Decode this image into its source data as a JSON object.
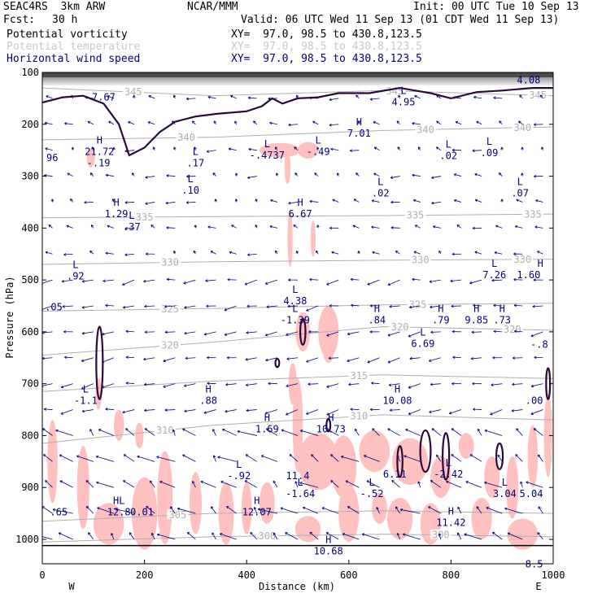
{
  "header": {
    "model": "SEAC4RS  3km ARW",
    "org": "NCAR/MMM",
    "init": "Init: 00 UTC Tue 10 Sep 13",
    "fcst_label": "Fcst:",
    "fcst_value": "30 h",
    "valid": "Valid: 06 UTC Wed 11 Sep 13 (01 CDT Wed 11 Sep 13)",
    "fields": [
      {
        "name": "Potential vorticity",
        "xy": "XY=  97.0, 98.5 to 430.8,123.5",
        "color": "#000000"
      },
      {
        "name": "Potential temperature",
        "xy": "XY=  97.0, 98.5 to 430.8,123.5",
        "color": "#c8c8c8"
      },
      {
        "name": "Horizontal wind speed",
        "xy": "XY=  97.0, 98.5 to 430.8,123.5",
        "color": "#000080"
      }
    ]
  },
  "chart_data": {
    "type": "cross-section",
    "xlabel": "Distance (km)",
    "ylabel": "Pressure (hPa)",
    "xlim": [
      0,
      1000
    ],
    "ylim": [
      1050,
      100
    ],
    "xticks": [
      0,
      200,
      400,
      600,
      800,
      1000
    ],
    "yticks": [
      100,
      200,
      300,
      400,
      500,
      600,
      700,
      800,
      900,
      1000
    ],
    "end_labels": {
      "left": "W",
      "right": "E"
    },
    "theta_contours": [
      {
        "label": "345",
        "pressure": [
          130,
          145,
          135,
          145
        ],
        "label_x": [
          178,
          690,
          970
        ]
      },
      {
        "label": "340",
        "pressure": [
          230,
          225,
          212,
          205
        ],
        "label_x": [
          282,
          750,
          940
        ]
      },
      {
        "label": "335",
        "pressure": [
          380,
          378,
          376,
          373
        ],
        "label_x": [
          200,
          730,
          960
        ]
      },
      {
        "label": "330",
        "pressure": [
          470,
          465,
          462,
          460
        ],
        "label_x": [
          250,
          740,
          940
        ]
      },
      {
        "label": "325",
        "pressure": [
          560,
          555,
          548,
          545
        ],
        "label_x": [
          250,
          735
        ]
      },
      {
        "label": "320",
        "pressure": [
          645,
          620,
          590,
          597
        ],
        "label_x": [
          250,
          700,
          920
        ]
      },
      {
        "label": "315",
        "pressure": [
          715,
          695,
          683,
          690
        ],
        "label_x": [
          620
        ]
      },
      {
        "label": "310",
        "pressure": [
          815,
          780,
          760,
          770
        ],
        "label_x": [
          240,
          620
        ]
      },
      {
        "label": "305",
        "pressure": [
          965,
          950,
          945,
          950
        ],
        "label_x": [
          265
        ]
      },
      {
        "label": "300",
        "pressure": [
          1005,
          995,
          990,
          995
        ],
        "label_x": [
          440,
          780
        ]
      }
    ],
    "extrema": [
      {
        "type": "",
        "value": "7.67",
        "x": 120,
        "p": 135
      },
      {
        "type": "L",
        "value": "4.95",
        "x": 707,
        "p": 145
      },
      {
        "type": "",
        "value": "4.08",
        "x": 975,
        "p": 102
      },
      {
        "type": "H",
        "value": "21.72",
        "x": 112,
        "p": 240
      },
      {
        "type": "",
        "value": "-.19",
        "x": 110,
        "p": 262
      },
      {
        "type": "",
        "value": "96",
        "x": 8,
        "p": 252
      },
      {
        "type": "L",
        "value": "-.4737",
        "x": 440,
        "p": 247
      },
      {
        "type": "L",
        "value": "-.49",
        "x": 540,
        "p": 240
      },
      {
        "type": "H",
        "value": "7.01",
        "x": 620,
        "p": 205
      },
      {
        "type": "L",
        "value": ".02",
        "x": 795,
        "p": 248
      },
      {
        "type": "L",
        "value": ".09",
        "x": 875,
        "p": 243
      },
      {
        "type": "L",
        "value": ".17",
        "x": 300,
        "p": 262
      },
      {
        "type": "L",
        "value": ".10",
        "x": 290,
        "p": 315
      },
      {
        "type": "L",
        "value": ".02",
        "x": 662,
        "p": 320
      },
      {
        "type": "L",
        "value": ".07",
        "x": 935,
        "p": 320
      },
      {
        "type": "H",
        "value": "1.29",
        "x": 145,
        "p": 360
      },
      {
        "type": "L",
        "value": ".37",
        "x": 175,
        "p": 385
      },
      {
        "type": "H",
        "value": "6.67",
        "x": 505,
        "p": 360
      },
      {
        "type": "L",
        "value": ".92",
        "x": 65,
        "p": 480
      },
      {
        "type": "",
        "value": ".05",
        "x": 5,
        "p": 540
      },
      {
        "type": "L",
        "value": "4.38",
        "x": 495,
        "p": 528
      },
      {
        "type": "L",
        "value": "-1.39",
        "x": 495,
        "p": 565
      },
      {
        "type": "H",
        "value": ".84",
        "x": 655,
        "p": 565
      },
      {
        "type": "H",
        "value": ".79",
        "x": 780,
        "p": 565
      },
      {
        "type": "H",
        "value": "9.85",
        "x": 850,
        "p": 565
      },
      {
        "type": "H",
        "value": ".73",
        "x": 900,
        "p": 565
      },
      {
        "type": "L",
        "value": "7.26",
        "x": 885,
        "p": 478
      },
      {
        "type": "H",
        "value": "1.60",
        "x": 975,
        "p": 478
      },
      {
        "type": "L",
        "value": "6.69",
        "x": 745,
        "p": 610
      },
      {
        "type": "",
        "value": "-.8",
        "x": 990,
        "p": 612
      },
      {
        "type": "L",
        "value": "-1.1",
        "x": 85,
        "p": 720
      },
      {
        "type": "H",
        "value": ".88",
        "x": 325,
        "p": 720
      },
      {
        "type": "H",
        "value": "10.08",
        "x": 695,
        "p": 720
      },
      {
        "type": "",
        "value": ".00",
        "x": 980,
        "p": 720
      },
      {
        "type": "H",
        "value": "1.69",
        "x": 440,
        "p": 775
      },
      {
        "type": "H",
        "value": "10.73",
        "x": 565,
        "p": 775
      },
      {
        "type": "L",
        "value": "-.92",
        "x": 385,
        "p": 865
      },
      {
        "type": "",
        "value": "11.4",
        "x": 500,
        "p": 865
      },
      {
        "type": "",
        "value": "6.11",
        "x": 690,
        "p": 862
      },
      {
        "type": "L",
        "value": "-2.42",
        "x": 795,
        "p": 862
      },
      {
        "type": "L",
        "value": "-1.64",
        "x": 505,
        "p": 900
      },
      {
        "type": "L",
        "value": "-.52",
        "x": 645,
        "p": 900
      },
      {
        "type": "L",
        "value": "3.04",
        "x": 905,
        "p": 900
      },
      {
        "type": "",
        "value": "5.04",
        "x": 980,
        "p": 900
      },
      {
        "type": "HL",
        "value": "12.8",
        "x": 150,
        "p": 935
      },
      {
        "type": "",
        "value": "0.01",
        "x": 195,
        "p": 935
      },
      {
        "type": "H",
        "value": "12.07",
        "x": 420,
        "p": 935
      },
      {
        "type": "",
        "value": ".65",
        "x": 15,
        "p": 935
      },
      {
        "type": "H",
        "value": "11.42",
        "x": 800,
        "p": 955
      },
      {
        "type": "H",
        "value": "10.68",
        "x": 560,
        "p": 1010
      },
      {
        "type": "",
        "value": "8.5",
        "x": 980,
        "p": 1035
      }
    ],
    "colors": {
      "pv_fill": "#ffc0c0",
      "pv_contour": "#2a0a3a",
      "theta": "#b0b0b0",
      "wind": "#000080",
      "extrema": "#000080",
      "stratosphere_gray": "#7a7a7a"
    }
  }
}
